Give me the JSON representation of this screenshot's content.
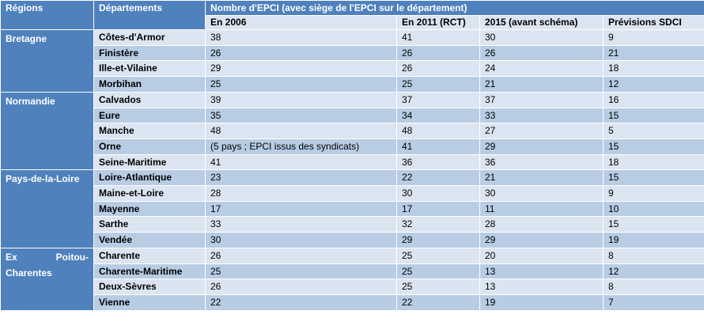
{
  "table": {
    "header": {
      "regions": "Régions",
      "departements": "Départements",
      "group": "Nombre d'EPCI (avec siège de l'EPCI sur le département)",
      "columns": [
        "En 2006",
        "En 2011 (RCT)",
        "2015 (avant schéma)",
        "Prévisions SDCI"
      ]
    },
    "regions": [
      {
        "name": "Bretagne",
        "rows": [
          [
            "Côtes-d'Armor",
            38,
            41,
            30,
            9
          ],
          [
            "Finistère",
            26,
            26,
            26,
            21
          ],
          [
            "Ille-et-Vilaine",
            29,
            26,
            24,
            18
          ],
          [
            "Morbihan",
            25,
            25,
            21,
            12
          ]
        ]
      },
      {
        "name": "Normandie",
        "rows": [
          [
            "Calvados",
            39,
            37,
            37,
            16
          ],
          [
            "Eure",
            35,
            34,
            33,
            15
          ],
          [
            "Manche",
            48,
            48,
            27,
            5
          ],
          [
            "Orne",
            "(5 pays ; EPCI issus des syndicats)",
            41,
            29,
            15
          ],
          [
            "Seine-Maritime",
            41,
            36,
            36,
            18
          ]
        ]
      },
      {
        "name": "Pays-de-la-Loire",
        "rows": [
          [
            "Loire-Atlantique",
            23,
            22,
            21,
            15
          ],
          [
            "Maine-et-Loire",
            28,
            30,
            30,
            9
          ],
          [
            "Mayenne",
            17,
            17,
            11,
            10
          ],
          [
            "Sarthe",
            33,
            32,
            28,
            15
          ],
          [
            "Vendée",
            30,
            29,
            29,
            19
          ]
        ]
      },
      {
        "name": "Ex Poitou-Charentes",
        "rows": [
          [
            "Charente",
            26,
            25,
            20,
            8
          ],
          [
            "Charente-Maritime",
            25,
            25,
            13,
            12
          ],
          [
            "Deux-Sèvres",
            26,
            25,
            13,
            8
          ],
          [
            "Vienne",
            22,
            22,
            19,
            7
          ]
        ]
      }
    ]
  }
}
